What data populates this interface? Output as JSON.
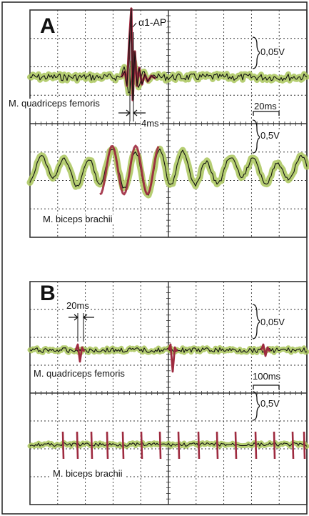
{
  "colors": {
    "grid": "#333333",
    "trace": "#111111",
    "band": "#a9c65a",
    "highlight": "#9e2a3f",
    "border": "#222222"
  },
  "chart_data": [
    {
      "type": "line",
      "panel": "A",
      "grid": true,
      "annotations": {
        "peak": "α1-AP",
        "interval": "4ms"
      },
      "scalebars": {
        "top_voltage": "0,05V",
        "time": "20ms",
        "bottom_voltage": "0,5V"
      },
      "series": [
        {
          "name": "M. quadriceps femoris",
          "kind": "spike-burst"
        },
        {
          "name": "M. biceps brachii",
          "kind": "oscillation"
        }
      ]
    },
    {
      "type": "line",
      "panel": "B",
      "grid": true,
      "annotations": {
        "interval": "20ms"
      },
      "scalebars": {
        "top_voltage": "0,05V",
        "time": "100ms",
        "bottom_voltage": "0,5V"
      },
      "series": [
        {
          "name": "M. quadriceps femoris",
          "kind": "sparse-spikes"
        },
        {
          "name": "M. biceps brachii",
          "kind": "periodic-spikes"
        }
      ]
    }
  ]
}
